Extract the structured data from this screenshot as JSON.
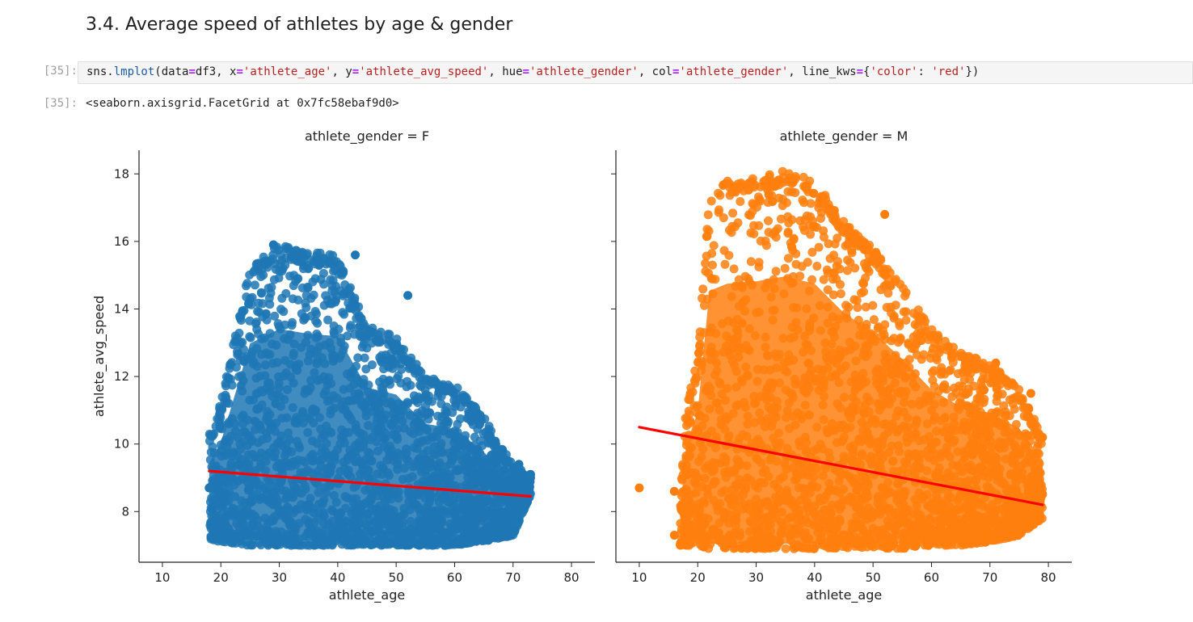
{
  "section_heading": "3.4. Average speed of athletes by age & gender",
  "cells": {
    "input_prompt": "[35]:",
    "output_prompt": "[35]:",
    "code": [
      {
        "t": "sns.",
        "c": ""
      },
      {
        "t": "lmplot",
        "c": "fn"
      },
      {
        "t": "(data",
        "c": ""
      },
      {
        "t": "=",
        "c": "op"
      },
      {
        "t": "df3, x",
        "c": ""
      },
      {
        "t": "=",
        "c": "op"
      },
      {
        "t": "'athlete_age'",
        "c": "str"
      },
      {
        "t": ", y",
        "c": ""
      },
      {
        "t": "=",
        "c": "op"
      },
      {
        "t": "'athlete_avg_speed'",
        "c": "str"
      },
      {
        "t": ", hue",
        "c": ""
      },
      {
        "t": "=",
        "c": "op"
      },
      {
        "t": "'athlete_gender'",
        "c": "str"
      },
      {
        "t": ", col",
        "c": ""
      },
      {
        "t": "=",
        "c": "op"
      },
      {
        "t": "'athlete_gender'",
        "c": "str"
      },
      {
        "t": ", line_kws",
        "c": ""
      },
      {
        "t": "=",
        "c": "op"
      },
      {
        "t": "{",
        "c": ""
      },
      {
        "t": "'color'",
        "c": "str"
      },
      {
        "t": ": ",
        "c": ""
      },
      {
        "t": "'red'",
        "c": "str"
      },
      {
        "t": "})",
        "c": ""
      }
    ],
    "output_text": "<seaborn.axisgrid.FacetGrid at 0x7fc58ebaf9d0>"
  },
  "chart_data": [
    {
      "type": "scatter",
      "title": "athlete_gender = F",
      "xlabel": "athlete_age",
      "ylabel": "athlete_avg_speed",
      "xlim": [
        6,
        84
      ],
      "ylim": [
        6.5,
        18.7
      ],
      "xticks": [
        10,
        20,
        30,
        40,
        50,
        60,
        70,
        80
      ],
      "yticks": [
        8,
        10,
        12,
        14,
        16,
        18
      ],
      "point_color": "#1f77b4",
      "line_color": "#ff0000",
      "regression_line": {
        "x": [
          18,
          73
        ],
        "y": [
          9.2,
          8.45
        ]
      },
      "envelope": {
        "ages": [
          18,
          20,
          25,
          30,
          35,
          40,
          45,
          50,
          55,
          60,
          65,
          70,
          73
        ],
        "max_speed": [
          10.3,
          11.2,
          15.3,
          15.9,
          15.7,
          15.6,
          13.5,
          13.2,
          12.0,
          11.8,
          10.8,
          9.4,
          9.1
        ],
        "min_speed": [
          7.2,
          7.1,
          7.0,
          7.0,
          7.0,
          7.0,
          7.0,
          7.0,
          7.0,
          7.0,
          7.1,
          7.3,
          8.5
        ]
      },
      "outliers": [
        [
          52,
          14.4
        ],
        [
          18,
          8.7
        ],
        [
          70,
          7.6
        ],
        [
          73,
          9.1
        ],
        [
          71,
          9.4
        ],
        [
          29,
          15.9
        ],
        [
          43,
          15.6
        ]
      ]
    },
    {
      "type": "scatter",
      "title": "athlete_gender = M",
      "xlabel": "athlete_age",
      "ylabel": "",
      "xlim": [
        6,
        84
      ],
      "ylim": [
        6.5,
        18.7
      ],
      "xticks": [
        10,
        20,
        30,
        40,
        50,
        60,
        70,
        80
      ],
      "yticks": [
        8,
        10,
        12,
        14,
        16,
        18
      ],
      "point_color": "#ff7f0e",
      "line_color": "#ff0000",
      "regression_line": {
        "x": [
          10,
          79
        ],
        "y": [
          10.5,
          8.2
        ]
      },
      "envelope": {
        "ages": [
          17,
          18,
          20,
          22,
          25,
          30,
          35,
          40,
          45,
          50,
          55,
          60,
          65,
          70,
          75,
          79
        ],
        "max_speed": [
          8.3,
          11.1,
          12.5,
          17.5,
          17.8,
          17.9,
          18.1,
          17.8,
          16.6,
          15.8,
          14.7,
          13.4,
          12.7,
          12.4,
          11.7,
          10.2
        ],
        "min_speed": [
          7.0,
          7.0,
          7.0,
          6.9,
          6.9,
          6.9,
          6.9,
          6.9,
          6.9,
          6.9,
          6.9,
          7.0,
          7.0,
          7.1,
          7.3,
          7.8
        ]
      },
      "outliers": [
        [
          10,
          8.7
        ],
        [
          16,
          8.6
        ],
        [
          16,
          7.3
        ],
        [
          52,
          16.8
        ],
        [
          79,
          10.2
        ],
        [
          77,
          11.5
        ],
        [
          71,
          12.4
        ],
        [
          69,
          11.6
        ]
      ]
    }
  ]
}
